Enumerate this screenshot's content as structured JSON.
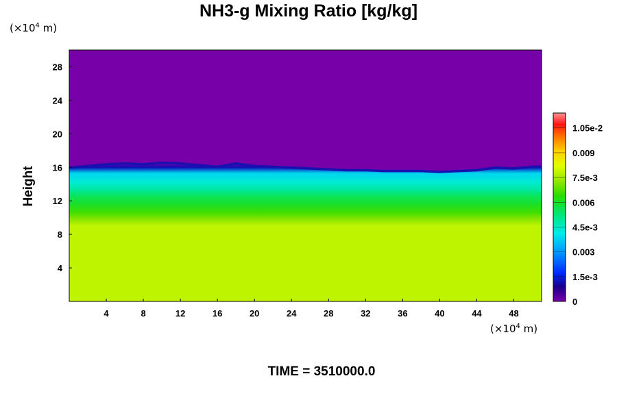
{
  "chart_data": {
    "type": "heatmap",
    "title": "NH3-g Mixing Ratio [kg/kg]",
    "xlabel": "",
    "ylabel": "Height",
    "x_unit": {
      "prefix": "(×10",
      "exp": "4",
      "suffix": " m)"
    },
    "y_unit": {
      "prefix": "(×10",
      "exp": "4",
      "suffix": " m)"
    },
    "xlim": [
      0,
      51
    ],
    "ylim": [
      0,
      30
    ],
    "x_ticks": [
      4,
      8,
      12,
      16,
      20,
      24,
      28,
      32,
      36,
      40,
      44,
      48
    ],
    "y_ticks": [
      4,
      8,
      12,
      16,
      20,
      24,
      28
    ],
    "colorbar": {
      "range": [
        0,
        0.0114
      ],
      "tick_values": [
        0,
        0.0015,
        0.003,
        0.0045,
        0.006,
        0.0075,
        0.009,
        0.0105
      ],
      "tick_labels": [
        "0",
        "1.5e-3",
        "0.003",
        "4.5e-3",
        "0.006",
        "7.5e-3",
        "0.009",
        "1.05e-2"
      ]
    },
    "vertical_profile": [
      {
        "height": 0,
        "value": 0.0078
      },
      {
        "height": 9,
        "value": 0.0078
      },
      {
        "height": 9.8,
        "value": 0.0072
      },
      {
        "height": 10.6,
        "value": 0.0066
      },
      {
        "height": 11.6,
        "value": 0.006
      },
      {
        "height": 12.6,
        "value": 0.0055
      },
      {
        "height": 13.4,
        "value": 0.0048
      },
      {
        "height": 14.3,
        "value": 0.0043
      },
      {
        "height": 15.3,
        "value": 0.0038
      },
      {
        "height": 16,
        "value": 0.0012
      },
      {
        "height": 16.5,
        "value": 0
      },
      {
        "height": 30,
        "value": 0
      }
    ],
    "top_boundary": [
      {
        "x": 0,
        "height": 16.1
      },
      {
        "x": 2,
        "height": 16.3
      },
      {
        "x": 4,
        "height": 16.5
      },
      {
        "x": 6,
        "height": 16.6
      },
      {
        "x": 8,
        "height": 16.5
      },
      {
        "x": 10,
        "height": 16.7
      },
      {
        "x": 12,
        "height": 16.6
      },
      {
        "x": 14,
        "height": 16.4
      },
      {
        "x": 16,
        "height": 16.2
      },
      {
        "x": 18,
        "height": 16.6
      },
      {
        "x": 20,
        "height": 16.3
      },
      {
        "x": 22,
        "height": 16.2
      },
      {
        "x": 24,
        "height": 16.1
      },
      {
        "x": 26,
        "height": 16.0
      },
      {
        "x": 28,
        "height": 15.9
      },
      {
        "x": 30,
        "height": 15.8
      },
      {
        "x": 32,
        "height": 15.8
      },
      {
        "x": 34,
        "height": 15.7
      },
      {
        "x": 36,
        "height": 15.7
      },
      {
        "x": 38,
        "height": 15.7
      },
      {
        "x": 40,
        "height": 15.6
      },
      {
        "x": 42,
        "height": 15.7
      },
      {
        "x": 44,
        "height": 15.8
      },
      {
        "x": 46,
        "height": 16.1
      },
      {
        "x": 48,
        "height": 16.0
      },
      {
        "x": 50,
        "height": 16.2
      },
      {
        "x": 51,
        "height": 16.2
      }
    ]
  },
  "time_label": "TIME = 3510000.0"
}
